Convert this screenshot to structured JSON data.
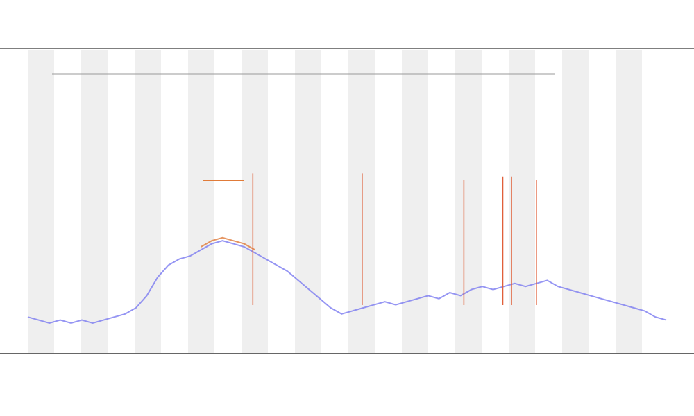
{
  "chart_data": {
    "type": "line",
    "x": [
      0,
      1,
      2,
      3,
      4,
      5,
      6,
      7,
      8,
      9,
      10,
      11,
      12,
      13,
      14,
      15,
      16,
      17,
      18,
      19,
      20,
      21,
      22,
      23,
      24,
      25,
      26,
      27,
      28,
      29,
      30,
      31,
      32,
      33,
      34,
      35,
      36,
      37,
      38,
      39,
      40,
      41,
      42,
      43,
      44,
      45,
      46,
      47,
      48,
      49,
      50,
      51,
      52,
      53,
      54,
      55,
      56,
      57,
      58,
      59
    ],
    "xlim": [
      0,
      59
    ],
    "ylim": [
      0,
      100
    ],
    "series": [
      {
        "color": "#7b7bf0",
        "values": [
          12,
          11,
          10,
          11,
          10,
          11,
          10,
          11,
          12,
          13,
          15,
          19,
          25,
          29,
          31,
          32,
          34,
          36,
          37,
          36,
          35,
          33,
          31,
          29,
          27,
          24,
          21,
          18,
          15,
          13,
          14,
          15,
          16,
          17,
          16,
          17,
          18,
          19,
          18,
          20,
          19,
          21,
          22,
          21,
          22,
          23,
          22,
          23,
          24,
          22,
          21,
          20,
          19,
          18,
          17,
          16,
          15,
          14,
          12,
          11
        ]
      },
      {
        "color": "#e07b39",
        "values": [
          null,
          null,
          null,
          null,
          null,
          null,
          null,
          null,
          null,
          null,
          null,
          null,
          null,
          null,
          null,
          null,
          35,
          37,
          38,
          37,
          36,
          34,
          null,
          null,
          null,
          null,
          null,
          null,
          null,
          null,
          null,
          null,
          null,
          null,
          null,
          null,
          null,
          null,
          null,
          null,
          null,
          null,
          null,
          null,
          null,
          null,
          null,
          null,
          null,
          null,
          null,
          null,
          null,
          null,
          null,
          null,
          null,
          null,
          null,
          null
        ]
      }
    ],
    "spikes": {
      "color": "#e0603a",
      "x": [
        20.8,
        30.9,
        40.3,
        43.9,
        44.7,
        47
      ],
      "values": [
        59,
        59,
        57,
        58,
        58,
        57
      ]
    }
  }
}
